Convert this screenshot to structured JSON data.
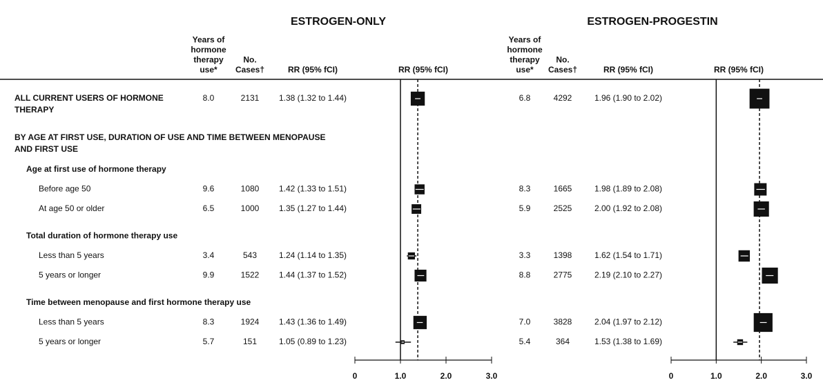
{
  "panels": [
    {
      "title": "ESTROGEN-ONLY"
    },
    {
      "title": "ESTROGEN-PROGESTIN"
    }
  ],
  "columns": {
    "years": [
      "Years of",
      "hormone",
      "therapy",
      "use*"
    ],
    "cases": [
      "No.",
      "Cases†"
    ],
    "rr": "RR (95% fCI)",
    "plot": "RR (95% fCI)"
  },
  "axis": {
    "xlim": [
      0,
      3
    ],
    "xticks": [
      0,
      {
        "value": 1,
        "label": "1.0"
      },
      {
        "value": 2,
        "label": "2.0"
      },
      {
        "value": 3,
        "label": "3.0"
      }
    ]
  },
  "overall": {
    "label": [
      "ALL CURRENT USERS OF HORMONE",
      "THERAPY"
    ],
    "data": [
      {
        "years": "8.0",
        "cases": 2131,
        "rr": 1.38,
        "lo": 1.32,
        "hi": 1.44,
        "rr_label": "1.38 (1.32 to 1.44)"
      },
      {
        "years": "6.8",
        "cases": 4292,
        "rr": 1.96,
        "lo": 1.9,
        "hi": 2.02,
        "rr_label": "1.96 (1.90 to 2.02)"
      }
    ]
  },
  "section": {
    "title": [
      "BY AGE AT FIRST USE, DURATION OF USE AND TIME BETWEEN MENOPAUSE",
      "AND FIRST USE"
    ],
    "groups": [
      {
        "title": "Age at first use of hormone therapy",
        "items": [
          {
            "label": "Before age 50",
            "data": [
              {
                "years": "9.6",
                "cases": 1080,
                "rr": 1.42,
                "lo": 1.33,
                "hi": 1.51,
                "rr_label": "1.42 (1.33 to 1.51)"
              },
              {
                "years": "8.3",
                "cases": 1665,
                "rr": 1.98,
                "lo": 1.89,
                "hi": 2.08,
                "rr_label": "1.98 (1.89 to 2.08)"
              }
            ]
          },
          {
            "label": "At age 50 or older",
            "data": [
              {
                "years": "6.5",
                "cases": 1000,
                "rr": 1.35,
                "lo": 1.27,
                "hi": 1.44,
                "rr_label": "1.35 (1.27 to 1.44)"
              },
              {
                "years": "5.9",
                "cases": 2525,
                "rr": 2.0,
                "lo": 1.92,
                "hi": 2.08,
                "rr_label": "2.00 (1.92 to 2.08)"
              }
            ]
          }
        ]
      },
      {
        "title": "Total duration of hormone therapy use",
        "items": [
          {
            "label": "Less than 5 years",
            "data": [
              {
                "years": "3.4",
                "cases": 543,
                "rr": 1.24,
                "lo": 1.14,
                "hi": 1.35,
                "rr_label": "1.24 (1.14 to 1.35)"
              },
              {
                "years": "3.3",
                "cases": 1398,
                "rr": 1.62,
                "lo": 1.54,
                "hi": 1.71,
                "rr_label": "1.62 (1.54 to 1.71)"
              }
            ]
          },
          {
            "label": "5 years or longer",
            "data": [
              {
                "years": "9.9",
                "cases": 1522,
                "rr": 1.44,
                "lo": 1.37,
                "hi": 1.52,
                "rr_label": "1.44 (1.37 to 1.52)"
              },
              {
                "years": "8.8",
                "cases": 2775,
                "rr": 2.19,
                "lo": 2.1,
                "hi": 2.27,
                "rr_label": "2.19 (2.10 to 2.27)"
              }
            ]
          }
        ]
      },
      {
        "title": "Time between menopause and first hormone therapy use",
        "items": [
          {
            "label": "Less than 5 years",
            "data": [
              {
                "years": "8.3",
                "cases": 1924,
                "rr": 1.43,
                "lo": 1.36,
                "hi": 1.49,
                "rr_label": "1.43 (1.36 to 1.49)"
              },
              {
                "years": "7.0",
                "cases": 3828,
                "rr": 2.04,
                "lo": 1.97,
                "hi": 2.12,
                "rr_label": "2.04 (1.97 to 2.12)"
              }
            ]
          },
          {
            "label": "5 years or longer",
            "data": [
              {
                "years": "5.7",
                "cases": 151,
                "rr": 1.05,
                "lo": 0.89,
                "hi": 1.23,
                "rr_label": "1.05 (0.89 to 1.23)"
              },
              {
                "years": "5.4",
                "cases": 364,
                "rr": 1.53,
                "lo": 1.38,
                "hi": 1.69,
                "rr_label": "1.53 (1.38 to 1.69)"
              }
            ]
          }
        ]
      }
    ]
  }
}
